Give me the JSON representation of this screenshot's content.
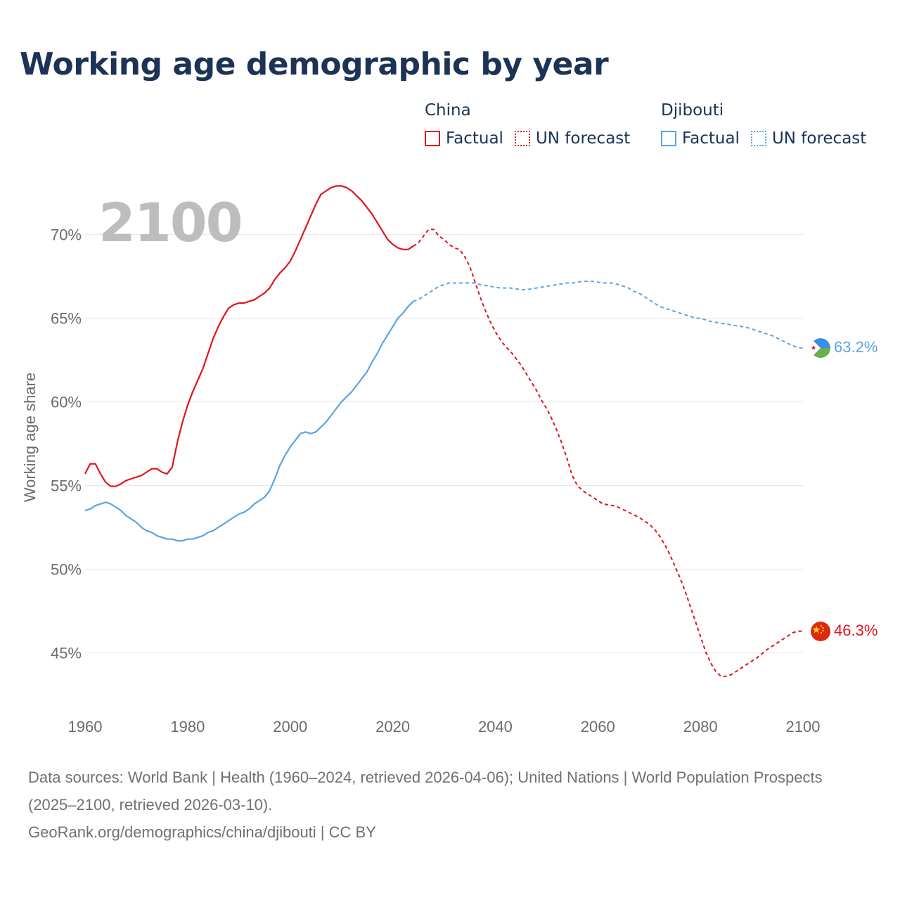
{
  "title": "Working age demographic by year",
  "year_label": "2100",
  "legend": {
    "groups": [
      {
        "name": "China",
        "color": "#e0141e",
        "items": [
          "Factual",
          "UN forecast"
        ]
      },
      {
        "name": "Djibouti",
        "color": "#5ba4e2",
        "items": [
          "Factual",
          "UN forecast"
        ]
      }
    ]
  },
  "end_labels": {
    "china": "46.3%",
    "djibouti": "63.2%"
  },
  "flag_icons": {
    "china": "china-flag-icon",
    "djibouti": "djibouti-flag-icon"
  },
  "footer": {
    "sources": "Data sources: World Bank | Health (1960–2024, retrieved 2026-04-06); United Nations | World Population Prospects (2025–2100, retrieved 2026-03-10).",
    "credit": "GeoRank.org/demographics/china/djibouti | CC BY"
  },
  "chart_data": {
    "type": "line",
    "title": "Working age demographic by year",
    "xlabel": "",
    "ylabel": "Working age share",
    "xlim": [
      1960,
      2100
    ],
    "ylim": [
      42,
      73
    ],
    "x_ticks": [
      1960,
      1980,
      2000,
      2020,
      2040,
      2060,
      2080,
      2100
    ],
    "y_ticks": [
      45,
      50,
      55,
      60,
      65,
      70
    ],
    "y_tick_labels": [
      "45%",
      "50%",
      "55%",
      "60%",
      "65%",
      "70%"
    ],
    "x_tick_labels": [
      "1960",
      "1980",
      "2000",
      "2020",
      "2040",
      "2060",
      "2080",
      "2100"
    ],
    "series": [
      {
        "name": "China",
        "color": "#e0141e",
        "factual": [
          [
            1960,
            55.7
          ],
          [
            1961,
            56.3
          ],
          [
            1962,
            56.3
          ],
          [
            1963,
            55.7
          ],
          [
            1964,
            55.2
          ],
          [
            1965,
            54.95
          ],
          [
            1966,
            54.95
          ],
          [
            1967,
            55.1
          ],
          [
            1968,
            55.3
          ],
          [
            1969,
            55.4
          ],
          [
            1970,
            55.5
          ],
          [
            1971,
            55.6
          ],
          [
            1972,
            55.8
          ],
          [
            1973,
            56.0
          ],
          [
            1974,
            56.0
          ],
          [
            1975,
            55.8
          ],
          [
            1976,
            55.7
          ],
          [
            1977,
            56.1
          ],
          [
            1978,
            57.6
          ],
          [
            1979,
            58.8
          ],
          [
            1980,
            59.8
          ],
          [
            1981,
            60.6
          ],
          [
            1982,
            61.3
          ],
          [
            1983,
            62.0
          ],
          [
            1984,
            62.9
          ],
          [
            1985,
            63.8
          ],
          [
            1986,
            64.5
          ],
          [
            1987,
            65.1
          ],
          [
            1988,
            65.6
          ],
          [
            1989,
            65.8
          ],
          [
            1990,
            65.9
          ],
          [
            1991,
            65.9
          ],
          [
            1992,
            66.0
          ],
          [
            1993,
            66.1
          ],
          [
            1994,
            66.3
          ],
          [
            1995,
            66.5
          ],
          [
            1996,
            66.8
          ],
          [
            1997,
            67.3
          ],
          [
            1998,
            67.7
          ],
          [
            1999,
            68.0
          ],
          [
            2000,
            68.4
          ],
          [
            2001,
            69.0
          ],
          [
            2002,
            69.7
          ],
          [
            2003,
            70.4
          ],
          [
            2004,
            71.1
          ],
          [
            2005,
            71.8
          ],
          [
            2006,
            72.4
          ],
          [
            2007,
            72.6
          ],
          [
            2008,
            72.8
          ],
          [
            2009,
            72.9
          ],
          [
            2010,
            72.9
          ],
          [
            2011,
            72.8
          ],
          [
            2012,
            72.6
          ],
          [
            2013,
            72.3
          ],
          [
            2014,
            72.0
          ],
          [
            2015,
            71.6
          ],
          [
            2016,
            71.2
          ],
          [
            2017,
            70.7
          ],
          [
            2018,
            70.2
          ],
          [
            2019,
            69.7
          ],
          [
            2020,
            69.4
          ],
          [
            2021,
            69.2
          ],
          [
            2022,
            69.1
          ],
          [
            2023,
            69.1
          ],
          [
            2024,
            69.3
          ]
        ],
        "forecast": [
          [
            2024,
            69.3
          ],
          [
            2025,
            69.5
          ],
          [
            2026,
            69.9
          ],
          [
            2027,
            70.3
          ],
          [
            2028,
            70.3
          ],
          [
            2029,
            69.9
          ],
          [
            2030,
            69.7
          ],
          [
            2031,
            69.4
          ],
          [
            2032,
            69.2
          ],
          [
            2033,
            69.1
          ],
          [
            2034,
            68.7
          ],
          [
            2035,
            68.1
          ],
          [
            2036,
            67.2
          ],
          [
            2037,
            66.3
          ],
          [
            2038,
            65.5
          ],
          [
            2039,
            64.8
          ],
          [
            2040,
            64.2
          ],
          [
            2041,
            63.7
          ],
          [
            2042,
            63.3
          ],
          [
            2043,
            63.0
          ],
          [
            2044,
            62.6
          ],
          [
            2045,
            62.2
          ],
          [
            2046,
            61.7
          ],
          [
            2047,
            61.2
          ],
          [
            2048,
            60.7
          ],
          [
            2049,
            60.1
          ],
          [
            2050,
            59.6
          ],
          [
            2051,
            59.0
          ],
          [
            2052,
            58.3
          ],
          [
            2053,
            57.5
          ],
          [
            2054,
            56.6
          ],
          [
            2055,
            55.6
          ],
          [
            2056,
            55.0
          ],
          [
            2057,
            54.7
          ],
          [
            2058,
            54.5
          ],
          [
            2059,
            54.3
          ],
          [
            2060,
            54.1
          ],
          [
            2061,
            53.9
          ],
          [
            2062,
            53.85
          ],
          [
            2063,
            53.8
          ],
          [
            2064,
            53.7
          ],
          [
            2065,
            53.55
          ],
          [
            2066,
            53.4
          ],
          [
            2067,
            53.25
          ],
          [
            2068,
            53.1
          ],
          [
            2069,
            52.9
          ],
          [
            2070,
            52.7
          ],
          [
            2071,
            52.4
          ],
          [
            2072,
            52.0
          ],
          [
            2073,
            51.5
          ],
          [
            2074,
            50.9
          ],
          [
            2075,
            50.2
          ],
          [
            2076,
            49.5
          ],
          [
            2077,
            48.7
          ],
          [
            2078,
            47.8
          ],
          [
            2079,
            46.9
          ],
          [
            2080,
            46.0
          ],
          [
            2081,
            45.1
          ],
          [
            2082,
            44.4
          ],
          [
            2083,
            43.9
          ],
          [
            2084,
            43.6
          ],
          [
            2085,
            43.6
          ],
          [
            2086,
            43.7
          ],
          [
            2087,
            43.9
          ],
          [
            2088,
            44.1
          ],
          [
            2089,
            44.3
          ],
          [
            2090,
            44.5
          ],
          [
            2091,
            44.7
          ],
          [
            2092,
            44.95
          ],
          [
            2093,
            45.2
          ],
          [
            2094,
            45.4
          ],
          [
            2095,
            45.6
          ],
          [
            2096,
            45.8
          ],
          [
            2097,
            46.0
          ],
          [
            2098,
            46.2
          ],
          [
            2099,
            46.3
          ],
          [
            2100,
            46.3
          ]
        ]
      },
      {
        "name": "Djibouti",
        "color": "#5ba4e2",
        "factual": [
          [
            1960,
            53.5
          ],
          [
            1961,
            53.6
          ],
          [
            1962,
            53.8
          ],
          [
            1963,
            53.9
          ],
          [
            1964,
            54.0
          ],
          [
            1965,
            53.9
          ],
          [
            1966,
            53.7
          ],
          [
            1967,
            53.5
          ],
          [
            1968,
            53.2
          ],
          [
            1969,
            53.0
          ],
          [
            1970,
            52.8
          ],
          [
            1971,
            52.5
          ],
          [
            1972,
            52.3
          ],
          [
            1973,
            52.2
          ],
          [
            1974,
            52.0
          ],
          [
            1975,
            51.9
          ],
          [
            1976,
            51.8
          ],
          [
            1977,
            51.8
          ],
          [
            1978,
            51.7
          ],
          [
            1979,
            51.7
          ],
          [
            1980,
            51.8
          ],
          [
            1981,
            51.8
          ],
          [
            1982,
            51.9
          ],
          [
            1983,
            52.0
          ],
          [
            1984,
            52.2
          ],
          [
            1985,
            52.3
          ],
          [
            1986,
            52.5
          ],
          [
            1987,
            52.7
          ],
          [
            1988,
            52.9
          ],
          [
            1989,
            53.1
          ],
          [
            1990,
            53.3
          ],
          [
            1991,
            53.4
          ],
          [
            1992,
            53.6
          ],
          [
            1993,
            53.9
          ],
          [
            1994,
            54.1
          ],
          [
            1995,
            54.3
          ],
          [
            1996,
            54.7
          ],
          [
            1997,
            55.4
          ],
          [
            1998,
            56.2
          ],
          [
            1999,
            56.8
          ],
          [
            2000,
            57.3
          ],
          [
            2001,
            57.7
          ],
          [
            2002,
            58.1
          ],
          [
            2003,
            58.2
          ],
          [
            2004,
            58.1
          ],
          [
            2005,
            58.2
          ],
          [
            2006,
            58.5
          ],
          [
            2007,
            58.8
          ],
          [
            2008,
            59.2
          ],
          [
            2009,
            59.6
          ],
          [
            2010,
            60.0
          ],
          [
            2011,
            60.3
          ],
          [
            2012,
            60.6
          ],
          [
            2013,
            61.0
          ],
          [
            2014,
            61.4
          ],
          [
            2015,
            61.8
          ],
          [
            2016,
            62.4
          ],
          [
            2017,
            62.9
          ],
          [
            2018,
            63.5
          ],
          [
            2019,
            64.0
          ],
          [
            2020,
            64.5
          ],
          [
            2021,
            65.0
          ],
          [
            2022,
            65.3
          ],
          [
            2023,
            65.7
          ],
          [
            2024,
            66.0
          ]
        ],
        "forecast": [
          [
            2024,
            66.0
          ],
          [
            2025,
            66.1
          ],
          [
            2026,
            66.3
          ],
          [
            2027,
            66.5
          ],
          [
            2028,
            66.7
          ],
          [
            2029,
            66.9
          ],
          [
            2030,
            67.0
          ],
          [
            2031,
            67.1
          ],
          [
            2032,
            67.1
          ],
          [
            2033,
            67.1
          ],
          [
            2034,
            67.1
          ],
          [
            2035,
            67.1
          ],
          [
            2036,
            67.1
          ],
          [
            2037,
            67.0
          ],
          [
            2038,
            66.95
          ],
          [
            2039,
            66.9
          ],
          [
            2040,
            66.85
          ],
          [
            2041,
            66.8
          ],
          [
            2042,
            66.8
          ],
          [
            2043,
            66.8
          ],
          [
            2044,
            66.75
          ],
          [
            2045,
            66.7
          ],
          [
            2046,
            66.7
          ],
          [
            2047,
            66.75
          ],
          [
            2048,
            66.8
          ],
          [
            2049,
            66.85
          ],
          [
            2050,
            66.9
          ],
          [
            2051,
            66.95
          ],
          [
            2052,
            67.0
          ],
          [
            2053,
            67.05
          ],
          [
            2054,
            67.1
          ],
          [
            2055,
            67.1
          ],
          [
            2056,
            67.15
          ],
          [
            2057,
            67.2
          ],
          [
            2058,
            67.2
          ],
          [
            2059,
            67.2
          ],
          [
            2060,
            67.15
          ],
          [
            2061,
            67.1
          ],
          [
            2062,
            67.1
          ],
          [
            2063,
            67.1
          ],
          [
            2064,
            67.0
          ],
          [
            2065,
            66.9
          ],
          [
            2066,
            66.8
          ],
          [
            2067,
            66.6
          ],
          [
            2068,
            66.5
          ],
          [
            2069,
            66.3
          ],
          [
            2070,
            66.1
          ],
          [
            2071,
            65.9
          ],
          [
            2072,
            65.7
          ],
          [
            2073,
            65.6
          ],
          [
            2074,
            65.5
          ],
          [
            2075,
            65.4
          ],
          [
            2076,
            65.3
          ],
          [
            2077,
            65.2
          ],
          [
            2078,
            65.1
          ],
          [
            2079,
            65.0
          ],
          [
            2080,
            65.0
          ],
          [
            2081,
            64.9
          ],
          [
            2082,
            64.8
          ],
          [
            2083,
            64.75
          ],
          [
            2084,
            64.7
          ],
          [
            2085,
            64.65
          ],
          [
            2086,
            64.6
          ],
          [
            2087,
            64.55
          ],
          [
            2088,
            64.5
          ],
          [
            2089,
            64.45
          ],
          [
            2090,
            64.35
          ],
          [
            2091,
            64.25
          ],
          [
            2092,
            64.15
          ],
          [
            2093,
            64.05
          ],
          [
            2094,
            63.95
          ],
          [
            2095,
            63.8
          ],
          [
            2096,
            63.65
          ],
          [
            2097,
            63.5
          ],
          [
            2098,
            63.35
          ],
          [
            2099,
            63.25
          ],
          [
            2100,
            63.2
          ]
        ]
      }
    ]
  }
}
